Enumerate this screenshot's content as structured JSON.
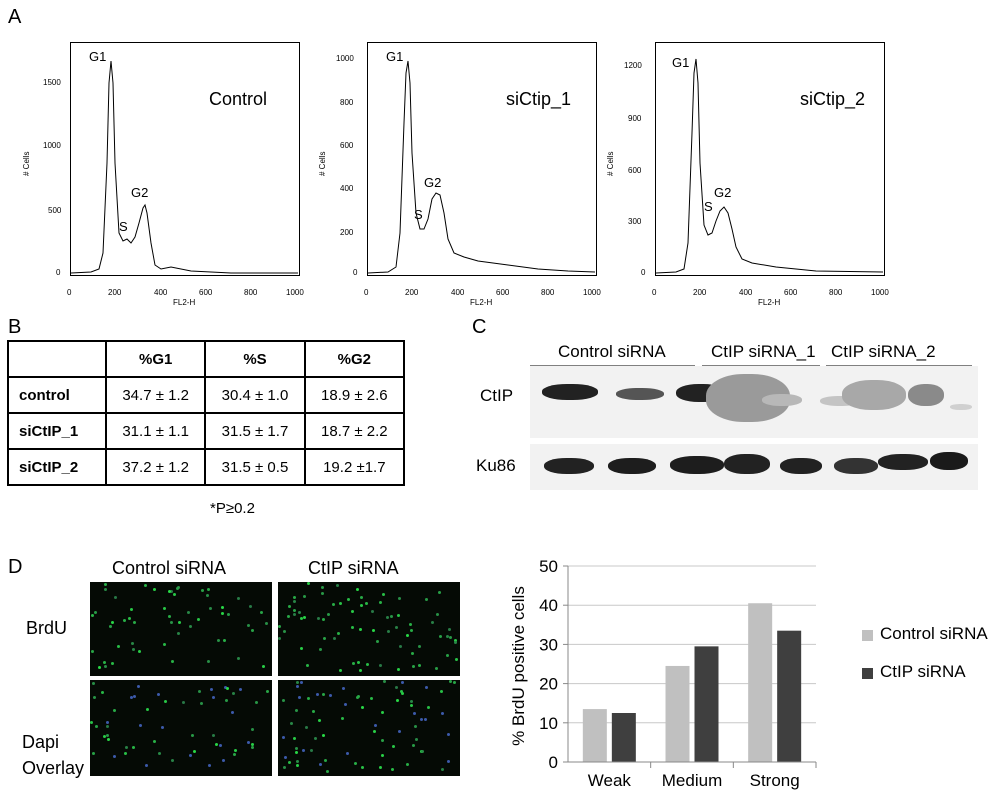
{
  "panels": {
    "a": "A",
    "b": "B",
    "c": "C",
    "d": "D"
  },
  "histograms": [
    {
      "condition": "Control",
      "ymax_tick": [
        0,
        500,
        1000,
        1500
      ],
      "peaks": [
        "G1",
        "S",
        "G2"
      ]
    },
    {
      "condition": "siCtip_1",
      "ymax_tick": [
        0,
        200,
        400,
        600,
        800,
        1000
      ],
      "peaks": [
        "G1",
        "S",
        "G2"
      ]
    },
    {
      "condition": "siCtip_2",
      "ymax_tick": [
        0,
        300,
        600,
        900,
        1200
      ],
      "peaks": [
        "G1",
        "S",
        "G2"
      ]
    }
  ],
  "hist_axes": {
    "ylabel": "# Cells",
    "xlabel": "FL2-H",
    "xticks": [
      "0",
      "200",
      "400",
      "600",
      "800",
      "1000"
    ]
  },
  "table": {
    "headers": [
      "",
      "%G1",
      "%S",
      "%G2"
    ],
    "rows": [
      [
        "control",
        "34.7 ± 1.2",
        "30.4 ± 1.0",
        "18.9 ± 2.6"
      ],
      [
        "siCtIP_1",
        "31.1 ± 1.1",
        "31.5 ± 1.7",
        "18.7 ± 2.2"
      ],
      [
        "siCtIP_2",
        "37.2 ± 1.2",
        "31.5 ± 0.5",
        "19.2 ±1.7"
      ]
    ],
    "note": "*P≥0.2"
  },
  "blot": {
    "groups": [
      "Control siRNA",
      "CtIP siRNA_1",
      "CtIP siRNA_2"
    ],
    "rows": [
      "CtIP",
      "Ku86"
    ]
  },
  "microscopy": {
    "columns": [
      "Control siRNA",
      "CtIP siRNA"
    ],
    "rows": [
      "BrdU",
      "Dapi",
      "Overlay"
    ]
  },
  "colors": {
    "control_bar": "#c0c0c0",
    "ctip_bar": "#3f3f3f"
  },
  "chart_data": {
    "type": "bar",
    "categories": [
      "Weak",
      "Medium",
      "Strong"
    ],
    "series": [
      {
        "name": "Control siRNA",
        "values": [
          13.5,
          24.5,
          40.5
        ]
      },
      {
        "name": "CtIP siRNA",
        "values": [
          12.5,
          29.5,
          33.5
        ]
      }
    ],
    "ylabel": "% BrdU positive cells",
    "ylim": [
      0,
      50
    ],
    "yticks": [
      0,
      10,
      20,
      30,
      40,
      50
    ],
    "grid": true,
    "legend": "right"
  }
}
